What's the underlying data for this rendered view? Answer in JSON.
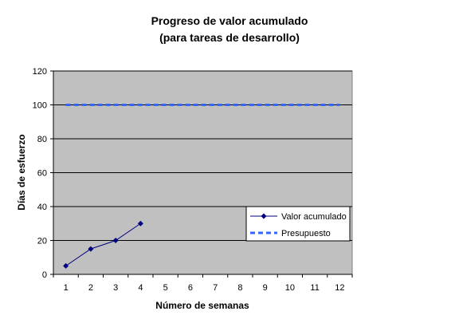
{
  "chart_data": {
    "type": "line",
    "title": "Progreso de valor acumulado",
    "subtitle": "(para tareas de desarrollo)",
    "xlabel": "Número de semanas",
    "ylabel": "Días de esfuerzo",
    "categories": [
      "1",
      "2",
      "3",
      "4",
      "5",
      "6",
      "7",
      "8",
      "9",
      "10",
      "11",
      "12"
    ],
    "ylim": [
      0,
      120
    ],
    "yticks": [
      "0",
      "20",
      "40",
      "60",
      "80",
      "100",
      "120"
    ],
    "grid": true,
    "plot_background": "#c0c0c0",
    "legend_position": "right",
    "series": [
      {
        "name": "Valor acumulado",
        "style": "solid-with-diamond-markers",
        "color": "#000080",
        "values": [
          5,
          15,
          20,
          30,
          null,
          null,
          null,
          null,
          null,
          null,
          null,
          null
        ]
      },
      {
        "name": "Presupuesto",
        "style": "dashed",
        "color": "#3366ff",
        "values": [
          100,
          100,
          100,
          100,
          100,
          100,
          100,
          100,
          100,
          100,
          100,
          100
        ]
      }
    ]
  }
}
